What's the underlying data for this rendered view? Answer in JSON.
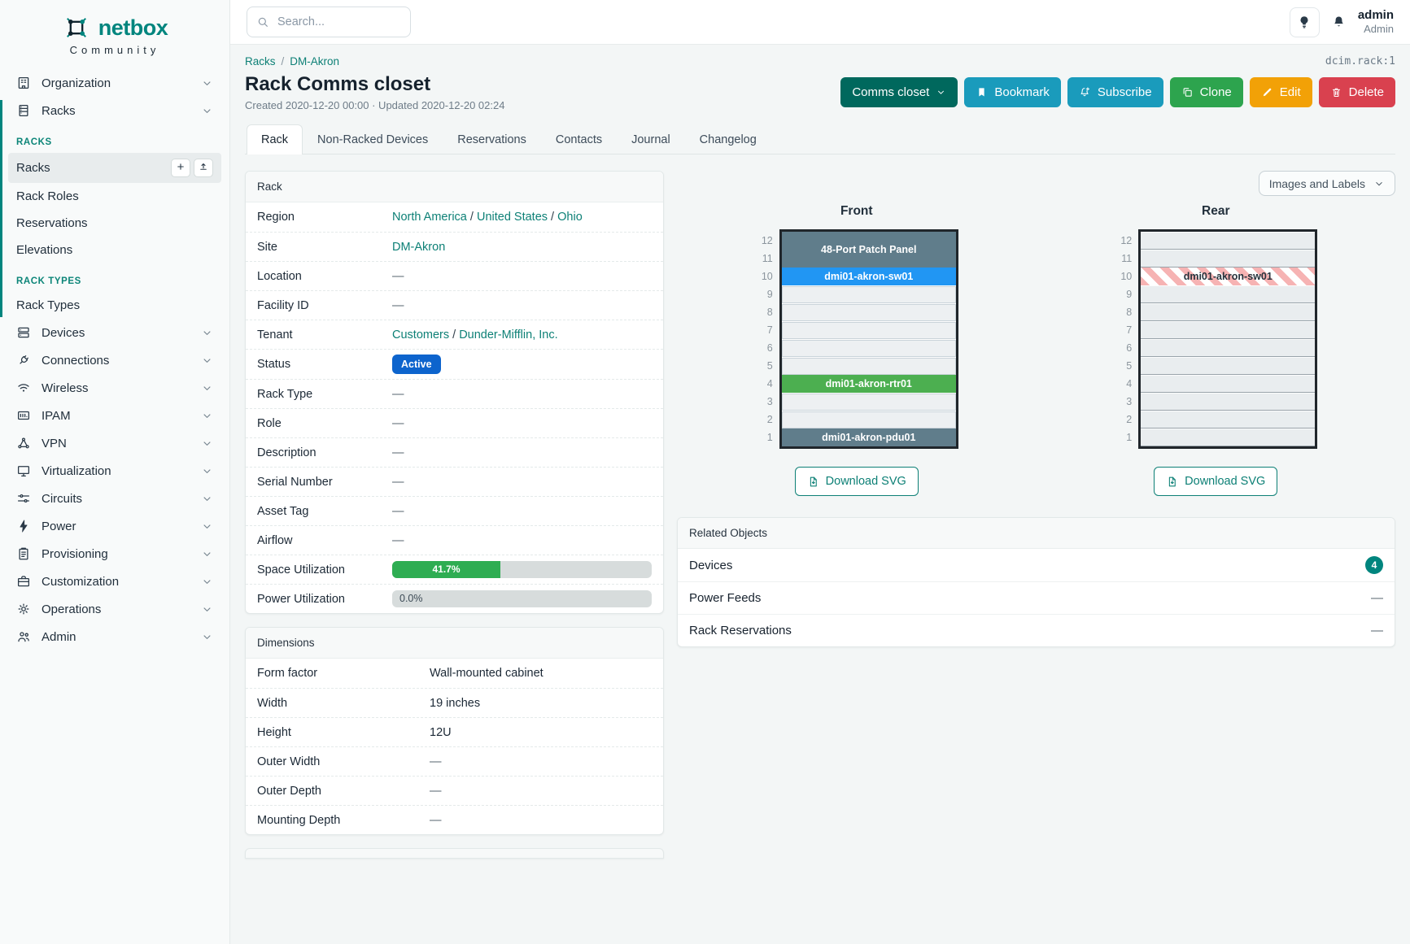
{
  "header": {
    "search_placeholder": "Search...",
    "username": "admin",
    "user_role": "Admin"
  },
  "sidebar": {
    "logo_text": "netbox",
    "logo_subtext": "Community",
    "menu": [
      {
        "type": "item",
        "label": "Organization",
        "icon": "organization"
      },
      {
        "type": "expanded",
        "items": [
          {
            "type": "item",
            "label": "Racks",
            "icon": "racks"
          },
          {
            "type": "heading",
            "label": "RACKS"
          },
          {
            "type": "link",
            "label": "Racks",
            "active": true,
            "quick_actions": [
              "plus",
              "upload"
            ]
          },
          {
            "type": "link",
            "label": "Rack Roles"
          },
          {
            "type": "link",
            "label": "Reservations"
          },
          {
            "type": "link",
            "label": "Elevations"
          },
          {
            "type": "heading",
            "label": "RACK TYPES"
          },
          {
            "type": "link",
            "label": "Rack Types"
          }
        ]
      },
      {
        "type": "item",
        "label": "Devices",
        "icon": "devices"
      },
      {
        "type": "item",
        "label": "Connections",
        "icon": "connections"
      },
      {
        "type": "item",
        "label": "Wireless",
        "icon": "wireless"
      },
      {
        "type": "item",
        "label": "IPAM",
        "icon": "ipam"
      },
      {
        "type": "item",
        "label": "VPN",
        "icon": "vpn"
      },
      {
        "type": "item",
        "label": "Virtualization",
        "icon": "virtualization"
      },
      {
        "type": "item",
        "label": "Circuits",
        "icon": "circuits"
      },
      {
        "type": "item",
        "label": "Power",
        "icon": "power"
      },
      {
        "type": "item",
        "label": "Provisioning",
        "icon": "provisioning"
      },
      {
        "type": "item",
        "label": "Customization",
        "icon": "customization"
      },
      {
        "type": "item",
        "label": "Operations",
        "icon": "operations"
      },
      {
        "type": "item",
        "label": "Admin",
        "icon": "admin"
      }
    ]
  },
  "page": {
    "breadcrumb": [
      "Racks",
      "DM-Akron"
    ],
    "object_id": "dcim.rack:1",
    "title": "Rack Comms closet",
    "meta_line": "Created 2020-12-20 00:00 · Updated 2020-12-20 02:24",
    "tabs": [
      {
        "label": "Rack",
        "active": true
      },
      {
        "label": "Non-Racked Devices"
      },
      {
        "label": "Reservations"
      },
      {
        "label": "Contacts"
      },
      {
        "label": "Journal"
      },
      {
        "label": "Changelog"
      }
    ]
  },
  "actions": {
    "selector_label": "Comms closet",
    "bookmark_label": "Bookmark",
    "subscribe_label": "Subscribe",
    "clone_label": "Clone",
    "edit_label": "Edit",
    "delete_label": "Delete"
  },
  "rack_panel": {
    "title": "Rack",
    "rows": [
      {
        "label": "Region",
        "type": "links",
        "values": [
          "North America",
          "United States",
          "Ohio"
        ]
      },
      {
        "label": "Site",
        "type": "links",
        "values": [
          "DM-Akron"
        ]
      },
      {
        "label": "Location",
        "type": "empty",
        "value": "—"
      },
      {
        "label": "Facility ID",
        "type": "empty",
        "value": "—"
      },
      {
        "label": "Tenant",
        "type": "links",
        "values": [
          "Customers",
          "Dunder-Mifflin, Inc."
        ]
      },
      {
        "label": "Status",
        "type": "badge",
        "value": "Active"
      },
      {
        "label": "Rack Type",
        "type": "empty",
        "value": "—"
      },
      {
        "label": "Role",
        "type": "empty",
        "value": "—"
      },
      {
        "label": "Description",
        "type": "empty",
        "value": "—"
      },
      {
        "label": "Serial Number",
        "type": "empty",
        "value": "—"
      },
      {
        "label": "Asset Tag",
        "type": "empty",
        "value": "—"
      },
      {
        "label": "Airflow",
        "type": "empty",
        "value": "—"
      },
      {
        "label": "Space Utilization",
        "type": "progress",
        "percent": 41.7,
        "text": "41.7%"
      },
      {
        "label": "Power Utilization",
        "type": "progress",
        "percent": 0,
        "text": "0.0%"
      }
    ]
  },
  "dimensions_panel": {
    "title": "Dimensions",
    "rows": [
      {
        "label": "Form factor",
        "value": "Wall-mounted cabinet",
        "empty": false
      },
      {
        "label": "Width",
        "value": "19 inches",
        "empty": false
      },
      {
        "label": "Height",
        "value": "12U",
        "empty": false
      },
      {
        "label": "Outer Width",
        "value": "—",
        "empty": true
      },
      {
        "label": "Outer Depth",
        "value": "—",
        "empty": true
      },
      {
        "label": "Mounting Depth",
        "value": "—",
        "empty": true
      }
    ]
  },
  "elevations": {
    "view_toggle_label": "Images and Labels",
    "download_label": "Download SVG",
    "units": 12,
    "front": {
      "title": "Front",
      "devices": [
        {
          "name": "48-Port Patch Panel",
          "top_unit": 12,
          "u_height": 2,
          "color": "#607d8b"
        },
        {
          "name": "dmi01-akron-sw01",
          "top_unit": 10,
          "u_height": 1,
          "color": "#2196f3"
        },
        {
          "name": "dmi01-akron-rtr01",
          "top_unit": 4,
          "u_height": 1,
          "color": "#4caf50"
        },
        {
          "name": "dmi01-akron-pdu01",
          "top_unit": 1,
          "u_height": 1,
          "color": "#607d8b"
        }
      ]
    },
    "rear": {
      "title": "Rear",
      "devices": [
        {
          "name": "dmi01-akron-sw01",
          "top_unit": 10,
          "u_height": 1,
          "striped": true
        }
      ]
    }
  },
  "related_panel": {
    "title": "Related Objects",
    "rows": [
      {
        "label": "Devices",
        "count": "4"
      },
      {
        "label": "Power Feeds",
        "count": "—"
      },
      {
        "label": "Rack Reservations",
        "count": "—"
      }
    ]
  },
  "colors": {
    "brand_teal": "#00857e",
    "link_teal": "#0d8076",
    "status_active_blue": "#0d64cd",
    "utilization_green": "#2ead52",
    "device_slate": "#607d8b",
    "device_blue": "#2196f3",
    "device_green": "#4caf50"
  }
}
